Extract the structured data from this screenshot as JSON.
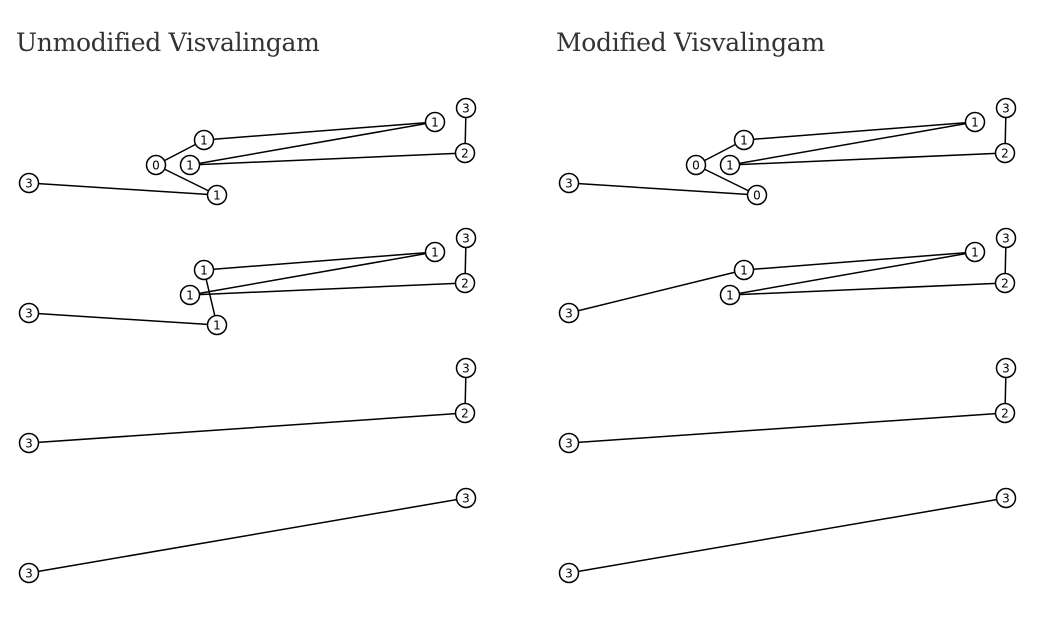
{
  "titles": {
    "left": "Unmodified Visvalingam",
    "right": "Modified Visvalingam"
  },
  "panels": [
    {
      "id": "unmodified",
      "stages": [
        {
          "nodes": [
            {
              "label": "3"
            },
            {
              "label": "1"
            },
            {
              "label": "0"
            },
            {
              "label": "1"
            },
            {
              "label": "1"
            },
            {
              "label": "1"
            },
            {
              "label": "2"
            },
            {
              "label": "3"
            }
          ],
          "edges": [
            [
              0,
              1
            ],
            [
              1,
              2
            ],
            [
              2,
              3
            ],
            [
              3,
              4
            ],
            [
              4,
              5
            ],
            [
              5,
              6
            ],
            [
              6,
              7
            ]
          ]
        },
        {
          "nodes": [
            {
              "label": "3"
            },
            {
              "label": "1"
            },
            {
              "label": "1"
            },
            {
              "label": "1"
            },
            {
              "label": "1"
            },
            {
              "label": "2"
            },
            {
              "label": "3"
            }
          ],
          "edges": [
            [
              0,
              1
            ],
            [
              1,
              2
            ],
            [
              2,
              3
            ],
            [
              3,
              4
            ],
            [
              4,
              5
            ],
            [
              5,
              6
            ]
          ]
        },
        {
          "nodes": [
            {
              "label": "3"
            },
            {
              "label": "2"
            },
            {
              "label": "3"
            }
          ],
          "edges": [
            [
              0,
              1
            ],
            [
              1,
              2
            ]
          ]
        },
        {
          "nodes": [
            {
              "label": "3"
            },
            {
              "label": "3"
            }
          ],
          "edges": [
            [
              0,
              1
            ]
          ]
        }
      ]
    },
    {
      "id": "modified",
      "stages": [
        {
          "nodes": [
            {
              "label": "3"
            },
            {
              "label": "0"
            },
            {
              "label": "0"
            },
            {
              "label": "1"
            },
            {
              "label": "1"
            },
            {
              "label": "1"
            },
            {
              "label": "2"
            },
            {
              "label": "3"
            }
          ],
          "edges": [
            [
              0,
              1
            ],
            [
              1,
              2
            ],
            [
              2,
              3
            ],
            [
              3,
              4
            ],
            [
              4,
              5
            ],
            [
              5,
              6
            ],
            [
              6,
              7
            ]
          ]
        },
        {
          "nodes": [
            {
              "label": "3"
            },
            {
              "label": "1"
            },
            {
              "label": "1"
            },
            {
              "label": "1"
            },
            {
              "label": "2"
            },
            {
              "label": "3"
            }
          ],
          "edges": [
            [
              0,
              1
            ],
            [
              1,
              2
            ],
            [
              2,
              3
            ],
            [
              3,
              4
            ],
            [
              4,
              5
            ]
          ]
        },
        {
          "nodes": [
            {
              "label": "3"
            },
            {
              "label": "2"
            },
            {
              "label": "3"
            }
          ],
          "edges": [
            [
              0,
              1
            ],
            [
              1,
              2
            ]
          ]
        },
        {
          "nodes": [
            {
              "label": "3"
            },
            {
              "label": "3"
            }
          ],
          "edges": [
            [
              0,
              1
            ]
          ]
        }
      ]
    }
  ]
}
